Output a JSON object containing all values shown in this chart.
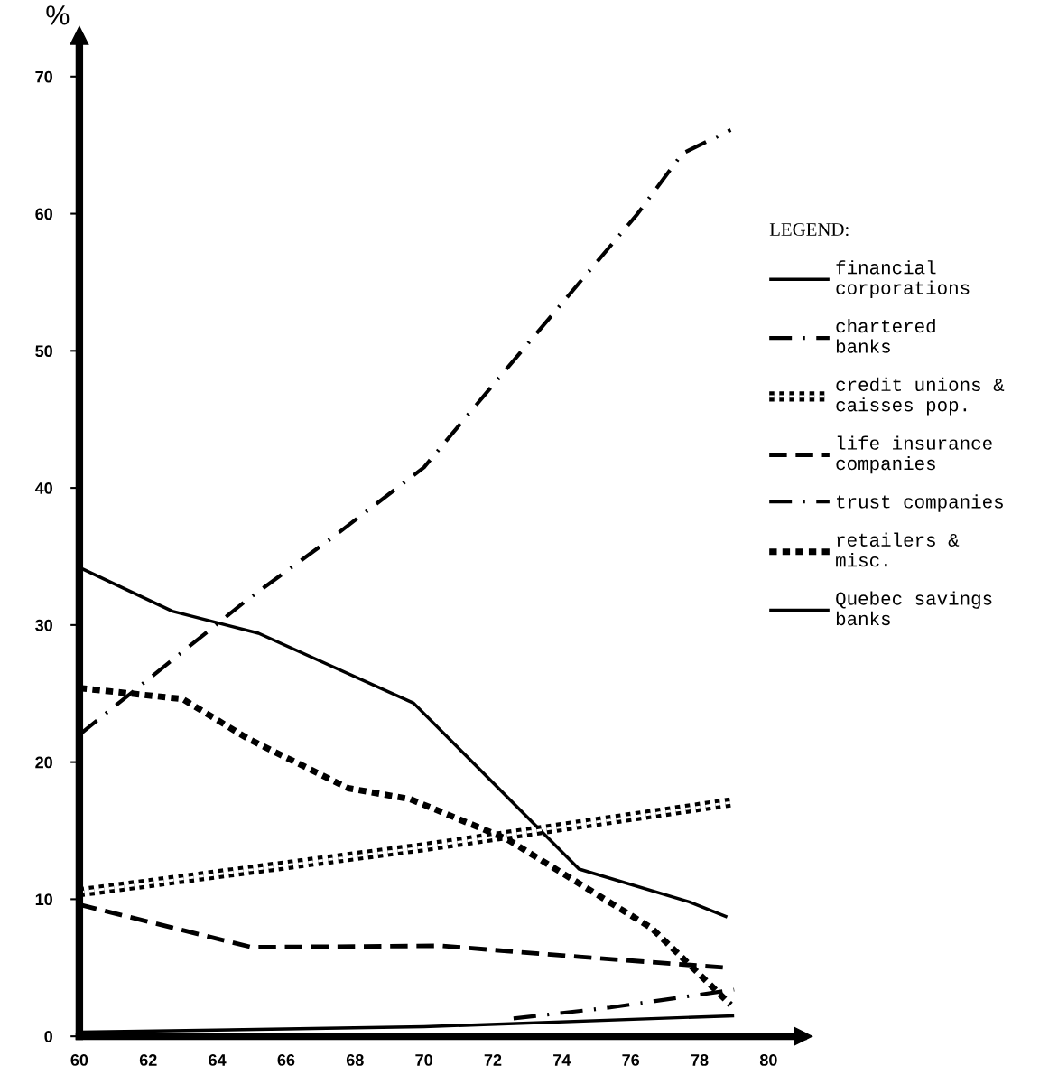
{
  "chart_data": {
    "type": "line",
    "ylabel": "%",
    "legend_title": "LEGEND:",
    "legend": "right",
    "grid": false,
    "xlim": [
      60,
      81
    ],
    "xticks": [
      60,
      62,
      64,
      66,
      68,
      70,
      72,
      74,
      76,
      78,
      80
    ],
    "ylim": [
      0,
      73
    ],
    "yticks": [
      0,
      10,
      20,
      30,
      40,
      50,
      60,
      70
    ],
    "series": [
      {
        "name": "financial\ncorporations",
        "color": "#000000",
        "line_style": "solid",
        "x": [
          60,
          62.7,
          65.2,
          69.7,
          74.5,
          77.7,
          78.8
        ],
        "values": [
          34.2,
          31.0,
          29.4,
          24.3,
          12.2,
          9.8,
          8.7
        ]
      },
      {
        "name": "chartered\nbanks",
        "color": "#000000",
        "line_style": "dashdot",
        "x": [
          60,
          64.9,
          67.3,
          70,
          71.9,
          76.2,
          77.5,
          78.9
        ],
        "values": [
          22.0,
          31.9,
          36.3,
          41.5,
          47.2,
          60.0,
          64.4,
          66.1
        ]
      },
      {
        "name": "credit unions &\ncaisses pop.",
        "color": "#000000",
        "line_style": "double",
        "x": [
          60,
          70,
          79.0
        ],
        "values": [
          10.5,
          13.8,
          17.1
        ]
      },
      {
        "name": "life insurance\ncompanies",
        "color": "#000000",
        "line_style": "dashed",
        "x": [
          60,
          65.0,
          70.5,
          74.5,
          78.8
        ],
        "values": [
          9.6,
          6.5,
          6.6,
          5.8,
          5.0
        ]
      },
      {
        "name": "trust companies",
        "color": "#000000",
        "line_style": "dashdot",
        "x": [
          72.6,
          75.4,
          79.0
        ],
        "values": [
          1.3,
          2.1,
          3.4
        ]
      },
      {
        "name": "retailers &\nmisc.",
        "color": "#000000",
        "line_style": "dotted",
        "x": [
          60,
          63.0,
          64.9,
          67.8,
          69.6,
          72.4,
          76.6,
          77.8,
          78.9
        ],
        "values": [
          25.4,
          24.6,
          21.7,
          18.1,
          17.3,
          14.4,
          7.9,
          5.0,
          2.3
        ]
      },
      {
        "name": "Quebec savings\nbanks",
        "color": "#000000",
        "line_style": "solid",
        "x": [
          60,
          70,
          79.0
        ],
        "values": [
          0.3,
          0.7,
          1.5
        ]
      }
    ]
  }
}
